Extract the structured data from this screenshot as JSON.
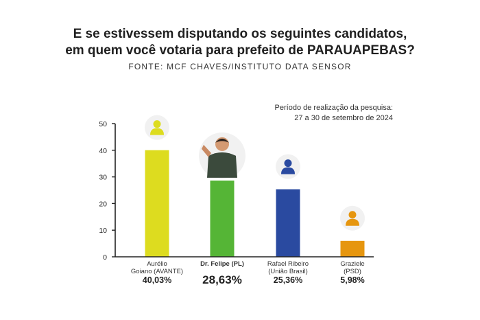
{
  "header": {
    "title_line1": "E se estivessem disputando os seguintes candidatos,",
    "title_line2": "em quem você votaria para prefeito de PARAUAPEBAS?",
    "source": "FONTE: MCF CHAVES/INSTITUTO DATA SENSOR"
  },
  "period": {
    "line1": "Período de realização da pesquisa:",
    "line2": "27 a 30 de setembro de 2024"
  },
  "chart_data": {
    "type": "bar",
    "categories": [
      [
        "Aurélio",
        "Goiano (AVANTE)"
      ],
      [
        "Dr. Felipe (PL)"
      ],
      [
        "Rafael Ribeiro",
        "(União Brasil)"
      ],
      [
        "Graziele",
        "(PSD)"
      ]
    ],
    "values": [
      40.03,
      28.63,
      25.36,
      5.98
    ],
    "value_labels": [
      "40,03%",
      "28,63%",
      "25,36%",
      "5,98%"
    ],
    "colors": [
      "#dddc1f",
      "#55b536",
      "#2a4aa0",
      "#e6960f"
    ],
    "icons": [
      "user-icon",
      "candidate-photo",
      "user-icon",
      "user-icon"
    ],
    "icon_colors": [
      "#dddc1f",
      "#55b536",
      "#2a4aa0",
      "#e6960f"
    ],
    "highlight_index": 1,
    "ylim": [
      0,
      50
    ],
    "yticks": [
      0,
      10,
      20,
      30,
      40,
      50
    ],
    "grid": false,
    "xlabel": "",
    "ylabel": ""
  }
}
